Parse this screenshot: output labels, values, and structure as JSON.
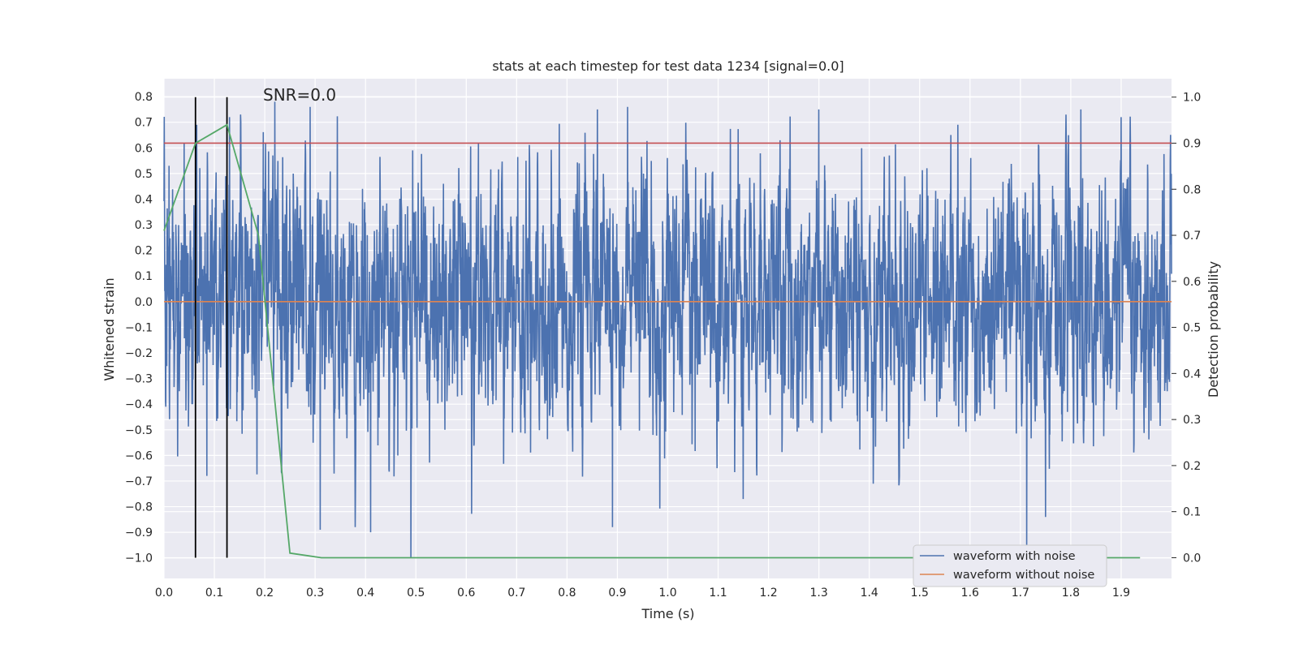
{
  "chart_data": {
    "type": "line",
    "title": "stats at each timestep for test data 1234 [signal=0.0]",
    "xlabel": "Time (s)",
    "ylabel": "Whitened strain",
    "y2label": "Detection probability",
    "annotation": "SNR=0.0",
    "xlim": [
      0.0,
      2.0
    ],
    "ylim": [
      -1.08,
      0.87
    ],
    "y2lim": [
      -0.045,
      1.04
    ],
    "xticks": [
      0.0,
      0.1,
      0.2,
      0.3,
      0.4,
      0.5,
      0.6,
      0.7,
      0.8,
      0.9,
      1.0,
      1.1,
      1.2,
      1.3,
      1.4,
      1.5,
      1.6,
      1.7,
      1.8,
      1.9
    ],
    "xtick_labels": [
      "0.0",
      "0.1",
      "0.2",
      "0.3",
      "0.4",
      "0.5",
      "0.6",
      "0.7",
      "0.8",
      "0.9",
      "1.0",
      "1.1",
      "1.2",
      "1.3",
      "1.4",
      "1.5",
      "1.6",
      "1.7",
      "1.8",
      "1.9"
    ],
    "yticks": [
      0.8,
      0.7,
      0.6,
      0.5,
      0.4,
      0.3,
      0.2,
      0.1,
      0.0,
      -0.1,
      -0.2,
      -0.3,
      -0.4,
      -0.5,
      -0.6,
      -0.7,
      -0.8,
      -0.9,
      -1.0
    ],
    "ytick_labels": [
      "0.8",
      "0.7",
      "0.6",
      "0.5",
      "0.4",
      "0.3",
      "0.2",
      "0.1",
      "0.0",
      "−0.1",
      "−0.2",
      "−0.3",
      "−0.4",
      "−0.5",
      "−0.6",
      "−0.7",
      "−0.8",
      "−0.9",
      "−1.0"
    ],
    "y2ticks": [
      1.0,
      0.9,
      0.8,
      0.7,
      0.6,
      0.5,
      0.4,
      0.3,
      0.2,
      0.1,
      0.0
    ],
    "y2tick_labels": [
      "1.0",
      "0.9",
      "0.8",
      "0.7",
      "0.6",
      "0.5",
      "0.4",
      "0.3",
      "0.2",
      "0.1",
      "0.0"
    ],
    "grid": true,
    "legend_position": "bottom-right",
    "background": "#eaeaf2",
    "series": [
      {
        "name": "waveform with noise",
        "color": "#4c72b0",
        "axis": "left",
        "sample_rate": 2048,
        "x_range": [
          0.0,
          2.0
        ],
        "amplitude_envelope": [
          -1.0,
          0.78
        ],
        "peaks": [
          {
            "x": 0.01,
            "y": 0.53
          },
          {
            "x": 0.04,
            "y": 0.62
          },
          {
            "x": 0.065,
            "y": 0.69
          },
          {
            "x": 0.085,
            "y": -0.68
          },
          {
            "x": 0.13,
            "y": 0.72
          },
          {
            "x": 0.22,
            "y": 0.78
          },
          {
            "x": 0.29,
            "y": 0.76
          },
          {
            "x": 0.31,
            "y": -0.89
          },
          {
            "x": 0.41,
            "y": -0.9
          },
          {
            "x": 0.49,
            "y": -1.0
          },
          {
            "x": 0.86,
            "y": 0.75
          },
          {
            "x": 0.89,
            "y": -0.88
          },
          {
            "x": 0.92,
            "y": 0.76
          },
          {
            "x": 1.15,
            "y": -0.77
          },
          {
            "x": 1.3,
            "y": 0.75
          },
          {
            "x": 1.75,
            "y": -0.84
          },
          {
            "x": 1.82,
            "y": 0.75
          },
          {
            "x": 1.9,
            "y": 0.72
          }
        ]
      },
      {
        "name": "waveform without noise",
        "color": "#dd8452",
        "axis": "left",
        "x": [
          0.0,
          2.0
        ],
        "y": [
          0.0,
          0.0
        ]
      },
      {
        "name": "detection probability",
        "color": "#55a868",
        "axis": "right",
        "x": [
          0.0,
          0.0625,
          0.125,
          0.1875,
          0.25,
          0.3125,
          0.375,
          0.4375,
          0.5,
          1.0,
          1.5,
          1.9375
        ],
        "y": [
          0.71,
          0.9,
          0.94,
          0.7,
          0.01,
          0.0,
          0.0,
          0.0,
          0.0,
          0.0,
          0.0,
          0.0
        ]
      }
    ],
    "threshold": {
      "axis": "right",
      "value": 0.9,
      "color": "#c44e52"
    },
    "vlines": [
      {
        "x": 0.0625,
        "y2_range": [
          0.0,
          1.0
        ],
        "color": "#000000"
      },
      {
        "x": 0.125,
        "y2_range": [
          0.0,
          1.0
        ],
        "color": "#000000"
      }
    ]
  }
}
